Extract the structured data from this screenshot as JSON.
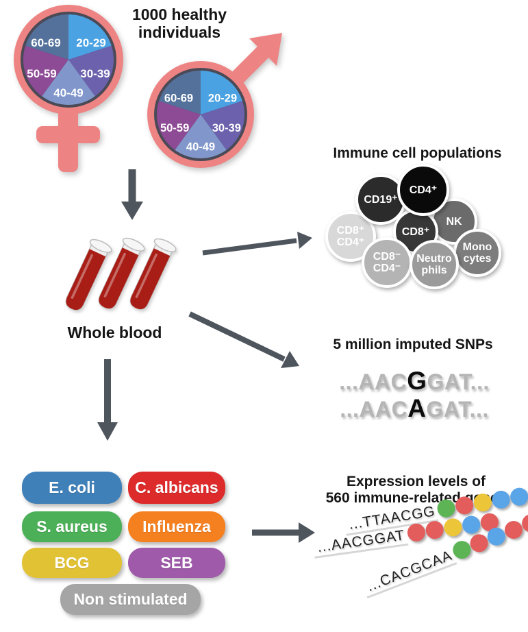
{
  "header": {
    "title_line1": "1000 healthy",
    "title_line2": "individuals"
  },
  "demographics": {
    "segments": [
      {
        "label": "20-29",
        "color": "#4aa2e2"
      },
      {
        "label": "30-39",
        "color": "#6b61ad"
      },
      {
        "label": "40-49",
        "color": "#8197cb"
      },
      {
        "label": "50-59",
        "color": "#8d4a95"
      },
      {
        "label": "60-69",
        "color": "#54719c"
      }
    ],
    "symbol_color": "#ed8383",
    "ring_color": "#4a4a56"
  },
  "whole_blood": {
    "label": "Whole blood"
  },
  "immune": {
    "title": "Immune cell populations",
    "cells": [
      {
        "line1": "CD8⁺",
        "line2": "CD4⁺",
        "color": "#d8d8d8"
      },
      {
        "line1": "CD19⁺",
        "line2": null,
        "color": "#2b2b2b"
      },
      {
        "line1": "NK",
        "line2": null,
        "color": "#6b6b6b"
      },
      {
        "line1": "CD8⁺",
        "line2": null,
        "color": "#373737"
      },
      {
        "line1": "CD4⁺",
        "line2": null,
        "color": "#0a0a0a"
      },
      {
        "line1": "CD8⁻",
        "line2": "CD4⁻",
        "color": "#b4b4b4"
      },
      {
        "line1": "Mono",
        "line2": "cytes",
        "color": "#7d7d7d"
      },
      {
        "line1": "Neutro",
        "line2": "phils",
        "color": "#9b9b9b"
      }
    ]
  },
  "snp": {
    "title": "5 million imputed SNPs",
    "seq1": {
      "pre": "...AAC",
      "variant": "G",
      "post": "GAT..."
    },
    "seq2": {
      "pre": "...AAC",
      "variant": "A",
      "post": "GAT..."
    }
  },
  "stimuli": {
    "items": [
      {
        "label": "E. coli",
        "color": "#4080b8"
      },
      {
        "label": "C. albicans",
        "color": "#dd2b2b"
      },
      {
        "label": "S. aureus",
        "color": "#4cb058"
      },
      {
        "label": "Influenza",
        "color": "#f58020"
      },
      {
        "label": "BCG",
        "color": "#e2c235"
      },
      {
        "label": "SEB",
        "color": "#9f5aaa"
      },
      {
        "label": "Non stimulated",
        "color": "#a5a5a5"
      }
    ]
  },
  "expression": {
    "title_line1": "Expression levels of",
    "title_line2": "560 immune-related genes",
    "palette": {
      "green": "#5cb455",
      "red": "#e35d5d",
      "yellow": "#ecc539",
      "blue": "#5aa4e8"
    },
    "rows": [
      {
        "seq": "...TTAACGG",
        "dots": [
          "green",
          "red",
          "yellow",
          "blue",
          "blue"
        ]
      },
      {
        "seq": "...AACGGAT",
        "dots": [
          "red",
          "red",
          "yellow",
          "blue",
          "red"
        ]
      },
      {
        "seq": "...CACGCAA",
        "dots": [
          "green",
          "red",
          "blue",
          "red",
          "red"
        ]
      }
    ]
  },
  "arrow_color": "#4e555d"
}
